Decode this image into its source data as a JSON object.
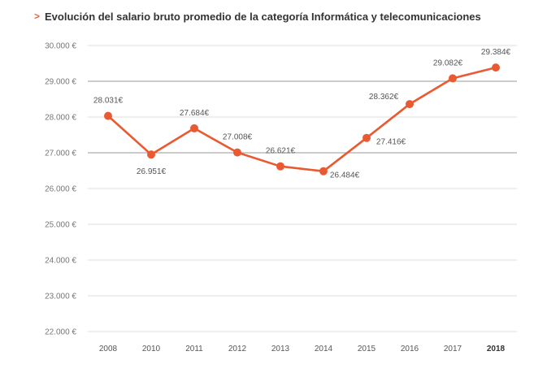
{
  "title": {
    "marker": ">",
    "text": "Evolución del salario bruto promedio de la categoría Informática y telecomunicaciones"
  },
  "colors": {
    "series": "#ea5a32",
    "accent": "#e8623a",
    "grid_major": "#9a9a9a",
    "grid_minor": "#dddddd"
  },
  "chart_data": {
    "type": "line",
    "x": [
      "2008",
      "2010",
      "2011",
      "2012",
      "2013",
      "2014",
      "2015",
      "2016",
      "2017",
      "2018"
    ],
    "emphasized_x": "2018",
    "values": [
      28031,
      26951,
      27684,
      27008,
      26621,
      26484,
      27416,
      28362,
      29082,
      29384
    ],
    "data_labels": [
      "28.031€",
      "26.951€",
      "27.684€",
      "27.008€",
      "26.621€",
      "26.484€",
      "27.416€",
      "28.362€",
      "29.082€",
      "29.384€"
    ],
    "ylim": [
      22000,
      30000
    ],
    "yticks": [
      30000,
      29000,
      28000,
      27000,
      26000,
      25000,
      24000,
      23000,
      22000
    ],
    "ytick_labels": [
      "30.000 €",
      "29.000 €",
      "28.000 €",
      "27.000 €",
      "26.000 €",
      "25.000 €",
      "24.000 €",
      "23.000 €",
      "22.000 €"
    ],
    "major_gridlines": [
      29000,
      27000
    ],
    "legend": "none",
    "grid": true
  }
}
